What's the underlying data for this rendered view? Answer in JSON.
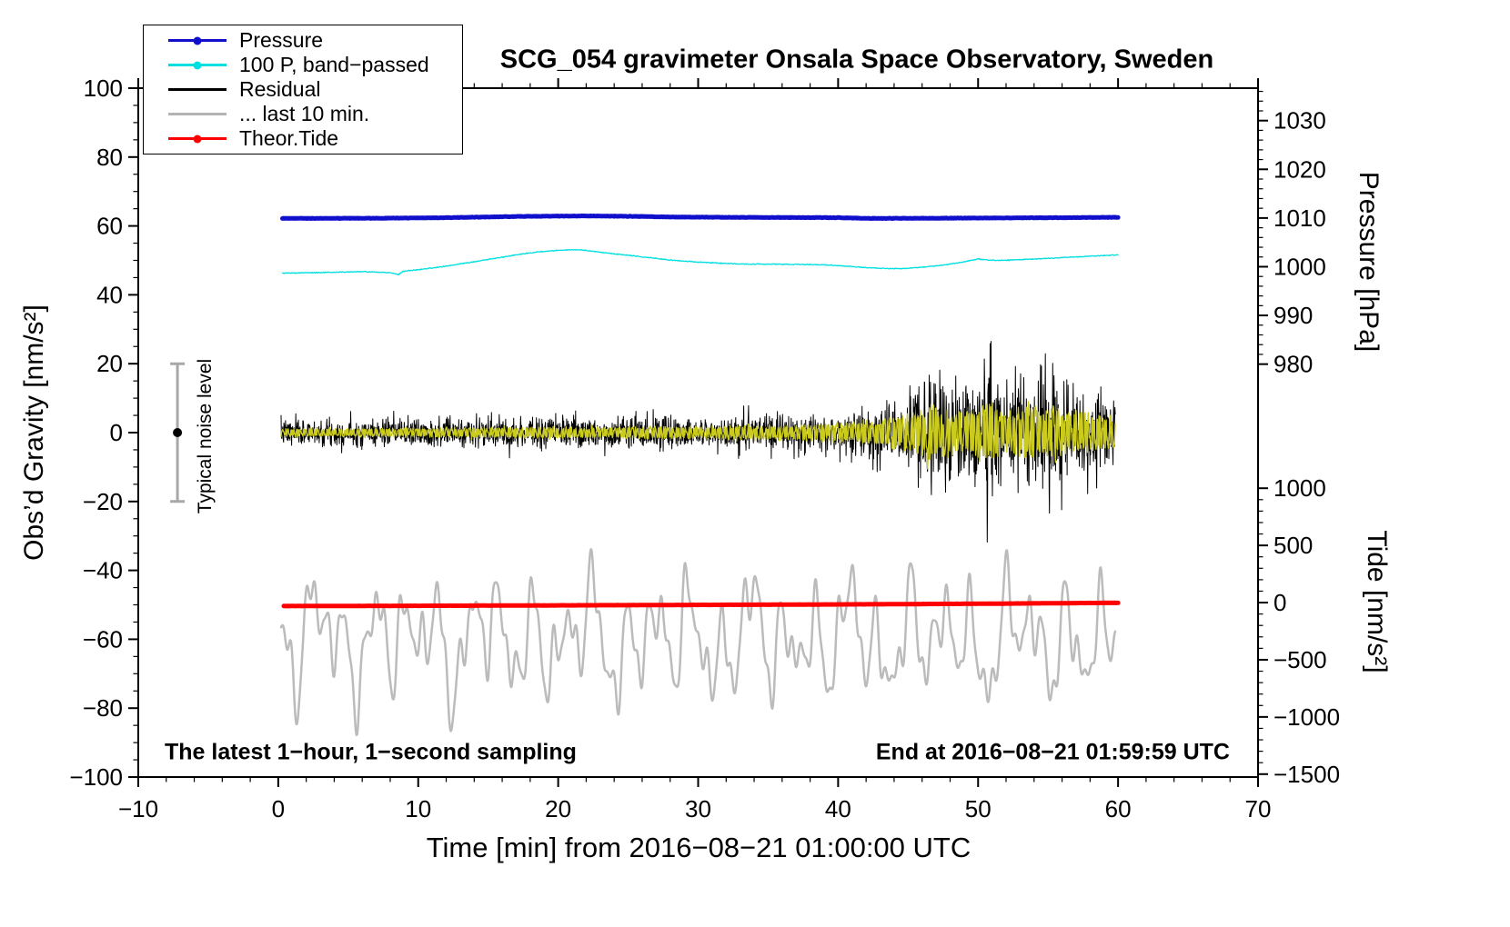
{
  "chart_data": {
    "type": "line",
    "title": "SCG_054 gravimeter Onsala Space Observatory, Sweden",
    "xlabel": "Time [min] from 2016−08−21 01:00:00 UTC",
    "ylabel_left": "Obs’d Gravity [nm/s²]",
    "ylabel_right_top": "Pressure [hPa]",
    "ylabel_right_bottom": "Tide [nm/s²]",
    "annotation_bottom_left": "The latest 1−hour, 1−second sampling",
    "annotation_bottom_right": "End at 2016−08−21 01:59:59 UTC",
    "noise_bar": {
      "label": "Typical noise level",
      "x": -7.2,
      "center": 0,
      "half_range": 20,
      "color": "#a8a8a8"
    },
    "axes": {
      "x": {
        "min": -10,
        "max": 70,
        "major": 10,
        "minor": 2
      },
      "gravity": {
        "min": -100,
        "max": 100,
        "major": 20,
        "minor": 5
      },
      "pressure": {
        "min": 980,
        "max": 1030,
        "major": 10,
        "minor": 2,
        "p_ref": 1010,
        "v_ref": 62.3,
        "v_per_hpa": 1.414
      },
      "tide": {
        "min": -1500,
        "max": 1000,
        "major": 500,
        "minor": 100,
        "t_ref": 0,
        "v_ref": -49.35,
        "v_per_unit": 0.0332
      }
    },
    "legend": {
      "items": [
        {
          "label": "Pressure",
          "color": "#1010cc",
          "dot": true
        },
        {
          "label": "100 P, band−passed",
          "color": "#00dfdf",
          "dot": true
        },
        {
          "label": "Residual",
          "color": "#000000",
          "dot": false
        },
        {
          "label": "... last 10 min.",
          "color": "#b3b3b3",
          "dot": false
        },
        {
          "label": "Theor.Tide",
          "color": "#ff0000",
          "dot": true
        }
      ]
    },
    "series": [
      {
        "name": "residual-last-10-min",
        "type": "waves",
        "color": "#bbbbbb",
        "width": 2.5,
        "center": -60,
        "range": [
          0.2,
          59.8
        ],
        "n": 2000,
        "components": [
          {
            "period": 2.25,
            "amp": 9.5,
            "phase": 1.2
          },
          {
            "period": 1.35,
            "amp": 6.5,
            "phase": 4.4
          },
          {
            "period": 3.8,
            "amp": 5.5,
            "phase": 2.6
          },
          {
            "period": 0.85,
            "amp": 4.2,
            "phase": 0.7
          },
          {
            "period": 6.3,
            "amp": 4.5,
            "phase": 5.1
          },
          {
            "period": 0.55,
            "amp": 2.2,
            "phase": 3.3
          }
        ]
      },
      {
        "name": "theor-tide",
        "type": "smooth",
        "color": "#ff0000",
        "width": 5,
        "jitter": 0.02,
        "n": 500,
        "seed": 3,
        "x": [
          0.4,
          5,
          10,
          15,
          20,
          25,
          30,
          35,
          40,
          45,
          50,
          55,
          60
        ],
        "y": [
          -50.35,
          -50.32,
          -50.28,
          -50.22,
          -50.15,
          -50.1,
          -50.02,
          -49.95,
          -49.88,
          -49.78,
          -49.68,
          -49.55,
          -49.42
        ]
      },
      {
        "name": "pressure-band-passed",
        "type": "smooth",
        "color": "#00dfdf",
        "width": 1.3,
        "jitter": 0.12,
        "n": 1400,
        "seed": 5,
        "x": [
          0.3,
          2,
          4,
          6,
          7,
          8,
          8.6,
          8.9,
          9.3,
          10,
          11,
          12,
          13,
          14,
          15,
          16,
          17,
          18,
          19,
          20,
          21,
          22,
          23,
          24,
          25,
          26,
          27,
          28,
          29,
          30,
          31,
          32,
          33,
          34,
          35,
          36,
          37,
          38,
          39,
          40,
          41,
          42,
          43,
          44,
          45,
          46,
          47,
          48,
          49,
          50,
          50.7,
          51.5,
          52.5,
          53.5,
          54.5,
          55.5,
          56.5,
          57.5,
          58.5,
          59.5,
          60
        ],
        "y": [
          46.3,
          46.4,
          46.55,
          46.75,
          46.6,
          46.45,
          45.9,
          46.8,
          47.0,
          47.3,
          47.8,
          48.3,
          49.0,
          49.6,
          50.3,
          50.9,
          51.6,
          52.2,
          52.6,
          52.9,
          53.1,
          52.9,
          52.4,
          51.9,
          51.5,
          51.0,
          50.6,
          50.1,
          49.8,
          49.5,
          49.3,
          49.1,
          49.0,
          48.9,
          48.9,
          48.9,
          48.85,
          48.8,
          48.7,
          48.5,
          48.2,
          47.9,
          47.7,
          47.6,
          47.7,
          48.0,
          48.4,
          48.9,
          49.6,
          50.4,
          50.1,
          50.0,
          50.1,
          50.3,
          50.5,
          50.7,
          50.9,
          51.1,
          51.3,
          51.5,
          51.6
        ]
      },
      {
        "name": "pressure",
        "type": "smooth",
        "color": "#1010cc",
        "width": 5,
        "jitter": 0.06,
        "n": 900,
        "seed": 9,
        "x": [
          0.3,
          4,
          8,
          12,
          15,
          18,
          20,
          22,
          25,
          28,
          32,
          36,
          40,
          42,
          44,
          47,
          50,
          53,
          56,
          58,
          60
        ],
        "y": [
          62.2,
          62.2,
          62.25,
          62.4,
          62.6,
          62.8,
          62.85,
          62.9,
          62.8,
          62.6,
          62.5,
          62.45,
          62.4,
          62.2,
          62.2,
          62.25,
          62.3,
          62.35,
          62.4,
          62.45,
          62.5
        ]
      },
      {
        "name": "residual",
        "type": "noise",
        "color": "#000000",
        "width": 1,
        "n": 2600,
        "range": [
          0.2,
          59.8
        ],
        "seed": 7,
        "env_x": [
          0,
          10,
          20,
          30,
          35,
          38,
          40,
          42,
          43,
          44,
          45,
          45.8,
          46.5,
          47,
          47.6,
          48.3,
          49,
          49.7,
          50.3,
          50.8,
          51.3,
          51.8,
          52.4,
          53,
          53.6,
          54.2,
          54.8,
          55.4,
          56,
          56.6,
          57.2,
          57.8,
          58.4,
          59,
          60
        ],
        "env_a": [
          3.6,
          3.9,
          4.2,
          4.4,
          4.7,
          5.2,
          5.6,
          6.5,
          7.5,
          9,
          11,
          13,
          17,
          20,
          14,
          12,
          14,
          16,
          20,
          24,
          18,
          13,
          12,
          15,
          17,
          19,
          16,
          20,
          15,
          13,
          15,
          12,
          11,
          10,
          9
        ]
      },
      {
        "name": "residual-band-passed",
        "type": "osc",
        "color": "#cbcb1e",
        "width": 1.3,
        "n": 2600,
        "range": [
          0.2,
          59.8
        ],
        "seed": 11,
        "period": 0.16,
        "env_x": [
          0,
          10,
          20,
          30,
          35,
          38,
          40,
          42,
          43,
          44,
          45,
          45.8,
          46.5,
          47,
          47.6,
          48.3,
          49,
          49.7,
          50.3,
          50.8,
          51.3,
          51.8,
          52.4,
          53,
          53.6,
          54.2,
          54.8,
          55.4,
          56,
          56.6,
          57.2,
          57.8,
          58.4,
          59,
          60
        ],
        "env_a": [
          1.3,
          1.5,
          1.8,
          2.0,
          2.3,
          2.6,
          3.0,
          3.6,
          4.2,
          5,
          6,
          7,
          9,
          10,
          7.5,
          6.5,
          7.5,
          8,
          10,
          11,
          9,
          7,
          6.5,
          8,
          8.5,
          9,
          8,
          9.5,
          7.5,
          7,
          7.5,
          6.5,
          6,
          5.5,
          5
        ]
      }
    ]
  }
}
